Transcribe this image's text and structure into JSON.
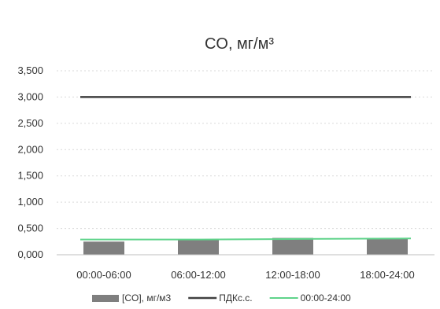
{
  "chart_data": {
    "type": "bar",
    "title": "CO, мг/м³",
    "xlabel": "",
    "ylabel": "",
    "categories": [
      "00:00-06:00",
      "06:00-12:00",
      "12:00-18:00",
      "18:00-24:00"
    ],
    "yticks": [
      "0,000",
      "0,500",
      "1,000",
      "1,500",
      "2,000",
      "2,500",
      "3,000",
      "3,500"
    ],
    "ylim": [
      0,
      3.5
    ],
    "grid": true,
    "legend_position": "bottom",
    "series": [
      {
        "name": "[CO], мг/м3",
        "type": "bar",
        "color": "#7f7f7f",
        "values": [
          0.25,
          0.28,
          0.32,
          0.3
        ]
      },
      {
        "name": "ПДКс.с.",
        "type": "line",
        "color": "#404040",
        "values": [
          3.0,
          3.0,
          3.0,
          3.0
        ]
      },
      {
        "name": "00:00-24:00",
        "type": "line",
        "color": "#5fd38a",
        "values": [
          0.29,
          0.29,
          0.3,
          0.31
        ]
      }
    ]
  }
}
